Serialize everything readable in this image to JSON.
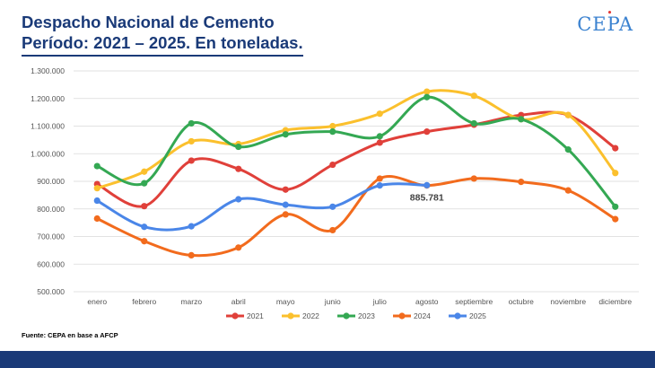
{
  "header": {
    "title_line1": "Despacho Nacional de Cemento",
    "title_line2": "Período: 2021 – 2025. En toneladas.",
    "logo_text": "CEPA"
  },
  "footer": {
    "source": "Fuente: CEPA  en base a AFCP"
  },
  "colors": {
    "title": "#1a3a78",
    "logo": "#3b82d0",
    "footer_bar": "#1a3a78"
  },
  "chart_data": {
    "type": "line",
    "title": "",
    "xlabel": "",
    "ylabel": "",
    "categories": [
      "enero",
      "febrero",
      "marzo",
      "abril",
      "mayo",
      "junio",
      "julio",
      "agosto",
      "septiembre",
      "octubre",
      "noviembre",
      "diciembre"
    ],
    "ylim": [
      500000,
      1300000
    ],
    "y_ticks": [
      500000,
      600000,
      700000,
      800000,
      900000,
      1000000,
      1100000,
      1200000,
      1300000
    ],
    "y_tick_labels": [
      "500.000",
      "600.000",
      "700.000",
      "800.000",
      "900.000",
      "1.000.000",
      "1.100.000",
      "1.200.000",
      "1.300.000"
    ],
    "grid": "horizontal",
    "smooth": true,
    "legend_position": "bottom",
    "series": [
      {
        "name": "2021",
        "color": "#e0403a",
        "values": [
          890000,
          810000,
          975000,
          945000,
          870000,
          960000,
          1040000,
          1080000,
          1105000,
          1140000,
          1140000,
          1020000
        ]
      },
      {
        "name": "2022",
        "color": "#fbc02d",
        "values": [
          875000,
          935000,
          1045000,
          1035000,
          1085000,
          1100000,
          1145000,
          1225000,
          1210000,
          1125000,
          1140000,
          930000
        ]
      },
      {
        "name": "2023",
        "color": "#34a853",
        "values": [
          955000,
          893000,
          1110000,
          1025000,
          1070000,
          1080000,
          1063000,
          1205000,
          1110000,
          1125000,
          1015000,
          808000
        ]
      },
      {
        "name": "2024",
        "color": "#f26b1d",
        "values": [
          765000,
          683000,
          632000,
          660000,
          780000,
          723000,
          910000,
          885000,
          910000,
          898000,
          867000,
          763000
        ]
      },
      {
        "name": "2025",
        "color": "#4a86e8",
        "values": [
          830000,
          735000,
          737000,
          835000,
          815000,
          808000,
          885000,
          885781,
          null,
          null,
          null,
          null
        ]
      }
    ],
    "annotation": {
      "series": "2025",
      "category": "agosto",
      "label": "885.781"
    }
  }
}
